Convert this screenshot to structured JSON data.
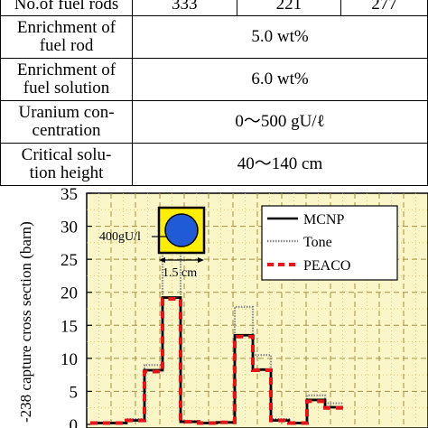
{
  "table": {
    "rows": [
      {
        "label": "No.of fuel rods",
        "values": [
          "333",
          "221",
          "277"
        ]
      },
      {
        "label": "Enrichment of fuel rod",
        "value": "5.0 wt%"
      },
      {
        "label": "Enrichment of fuel solution",
        "value": "6.0 wt%"
      },
      {
        "label": "Uranium concentration",
        "value": "0～500 gU/ℓ"
      },
      {
        "label": "Critical solution height",
        "value": "40～140 cm"
      }
    ],
    "label_lines": {
      "r1": [
        "Enrichment of",
        "fuel rod"
      ],
      "r2": [
        "Enrichment of",
        "fuel solution"
      ],
      "r3": [
        "Uranium con-",
        "centration"
      ],
      "r4": [
        "Critical solu-",
        "tion height"
      ]
    }
  },
  "inset": {
    "concentration_label": "400gU/l",
    "pitch_label": "1.5 cm",
    "fill_color": "#ffee00",
    "rod_color": "#1f5bd6"
  },
  "chart_data": {
    "type": "line",
    "ylabel": "-238 capture cross section (barn)",
    "ylim": [
      0,
      35
    ],
    "yticks": [
      0,
      5,
      10,
      15,
      20,
      25,
      30,
      35
    ],
    "legend_position": "top-right",
    "series": [
      {
        "name": "MCNP",
        "color": "#000000",
        "style": "solid",
        "steps": [
          [
            0,
            0.2
          ],
          [
            1,
            0.2
          ],
          [
            2,
            0.6
          ],
          [
            3,
            8.2
          ],
          [
            4,
            19.2
          ],
          [
            5,
            0.4
          ],
          [
            6,
            0.2
          ],
          [
            7,
            0.3
          ],
          [
            8,
            13.5
          ],
          [
            9,
            8.3
          ],
          [
            10,
            0.6
          ],
          [
            11,
            0.2
          ],
          [
            12,
            3.7
          ],
          [
            13,
            2.6
          ]
        ]
      },
      {
        "name": "Tone",
        "color": "#888888",
        "style": "dotted",
        "steps": [
          [
            0,
            0.2
          ],
          [
            1,
            0.2
          ],
          [
            2,
            0.8
          ],
          [
            3,
            9.0
          ],
          [
            4,
            28.8
          ],
          [
            5,
            0.5
          ],
          [
            6,
            0.2
          ],
          [
            7,
            0.3
          ],
          [
            8,
            17.8
          ],
          [
            9,
            10.5
          ],
          [
            10,
            0.8
          ],
          [
            11,
            0.2
          ],
          [
            12,
            4.4
          ],
          [
            13,
            3.2
          ]
        ]
      },
      {
        "name": "PEACO",
        "color": "#e8141a",
        "style": "dashed",
        "steps": [
          [
            0,
            0.2
          ],
          [
            1,
            0.2
          ],
          [
            2,
            0.6
          ],
          [
            3,
            8.0
          ],
          [
            4,
            19.0
          ],
          [
            5,
            0.4
          ],
          [
            6,
            0.2
          ],
          [
            7,
            0.3
          ],
          [
            8,
            13.3
          ],
          [
            9,
            8.2
          ],
          [
            10,
            0.6
          ],
          [
            11,
            0.2
          ],
          [
            12,
            3.5
          ],
          [
            13,
            2.5
          ]
        ]
      }
    ]
  }
}
